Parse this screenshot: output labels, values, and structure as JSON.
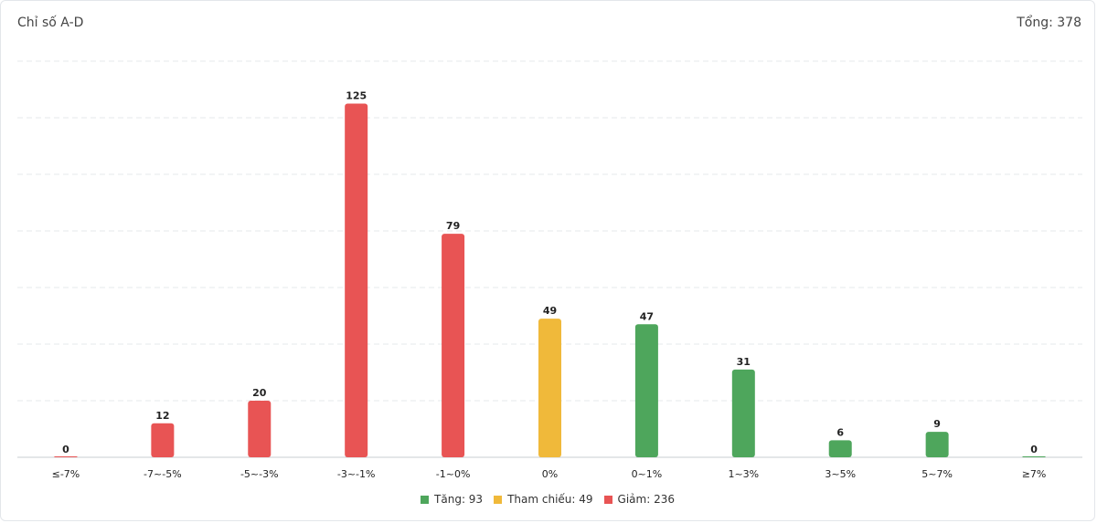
{
  "header": {
    "title": "Chỉ số A-D",
    "total": "Tổng: 378"
  },
  "colors": {
    "up": "#4ea65c",
    "ref": "#f0b93a",
    "down": "#e85454",
    "grid": "#e6e8eb",
    "axis": "#c9ccd1"
  },
  "legend": [
    {
      "label": "Tăng: 93",
      "color_key": "up"
    },
    {
      "label": "Tham chiếu: 49",
      "color_key": "ref"
    },
    {
      "label": "Giảm: 236",
      "color_key": "down"
    }
  ],
  "chart_data": {
    "type": "bar",
    "categories": [
      "≤-7%",
      "-7~-5%",
      "-5~-3%",
      "-3~-1%",
      "-1~0%",
      "0%",
      "0~1%",
      "1~3%",
      "3~5%",
      "5~7%",
      "≥7%"
    ],
    "values": [
      0,
      12,
      20,
      125,
      79,
      49,
      47,
      31,
      6,
      9,
      0
    ],
    "color_keys": [
      "down",
      "down",
      "down",
      "down",
      "down",
      "ref",
      "up",
      "up",
      "up",
      "up",
      "up"
    ],
    "title": "Chỉ số A-D",
    "ylim": [
      0,
      140
    ],
    "grid": true,
    "legend_position": "bottom"
  }
}
